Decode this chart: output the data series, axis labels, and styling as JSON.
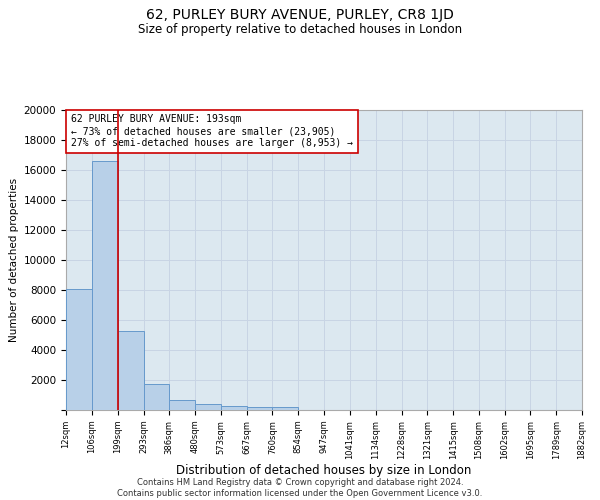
{
  "title": "62, PURLEY BURY AVENUE, PURLEY, CR8 1JD",
  "subtitle": "Size of property relative to detached houses in London",
  "xlabel": "Distribution of detached houses by size in London",
  "ylabel": "Number of detached properties",
  "footer_line1": "Contains HM Land Registry data © Crown copyright and database right 2024.",
  "footer_line2": "Contains public sector information licensed under the Open Government Licence v3.0.",
  "bar_edges": [
    12,
    106,
    199,
    293,
    386,
    480,
    573,
    667,
    760,
    854,
    947,
    1041,
    1134,
    1228,
    1321,
    1415,
    1508,
    1602,
    1695,
    1789,
    1882
  ],
  "bar_heights": [
    8100,
    16600,
    5300,
    1750,
    700,
    380,
    280,
    210,
    210,
    0,
    0,
    0,
    0,
    0,
    0,
    0,
    0,
    0,
    0,
    0
  ],
  "bar_color": "#b8d0e8",
  "bar_edge_color": "#6699cc",
  "property_line_x": 199,
  "property_line_color": "#cc0000",
  "annotation_text": "62 PURLEY BURY AVENUE: 193sqm\n← 73% of detached houses are smaller (23,905)\n27% of semi-detached houses are larger (8,953) →",
  "annotation_box_color": "#cc0000",
  "ylim": [
    0,
    20000
  ],
  "yticks": [
    0,
    2000,
    4000,
    6000,
    8000,
    10000,
    12000,
    14000,
    16000,
    18000,
    20000
  ],
  "tick_labels": [
    "12sqm",
    "106sqm",
    "199sqm",
    "293sqm",
    "386sqm",
    "480sqm",
    "573sqm",
    "667sqm",
    "760sqm",
    "854sqm",
    "947sqm",
    "1041sqm",
    "1134sqm",
    "1228sqm",
    "1321sqm",
    "1415sqm",
    "1508sqm",
    "1602sqm",
    "1695sqm",
    "1789sqm",
    "1882sqm"
  ],
  "grid_color": "#c8d4e4",
  "background_color": "#dce8f0",
  "title_fontsize": 10,
  "subtitle_fontsize": 8.5,
  "ylabel_fontsize": 7.5,
  "xlabel_fontsize": 8.5,
  "ytick_fontsize": 7.5,
  "xtick_fontsize": 6,
  "annotation_fontsize": 7,
  "footer_fontsize": 6
}
